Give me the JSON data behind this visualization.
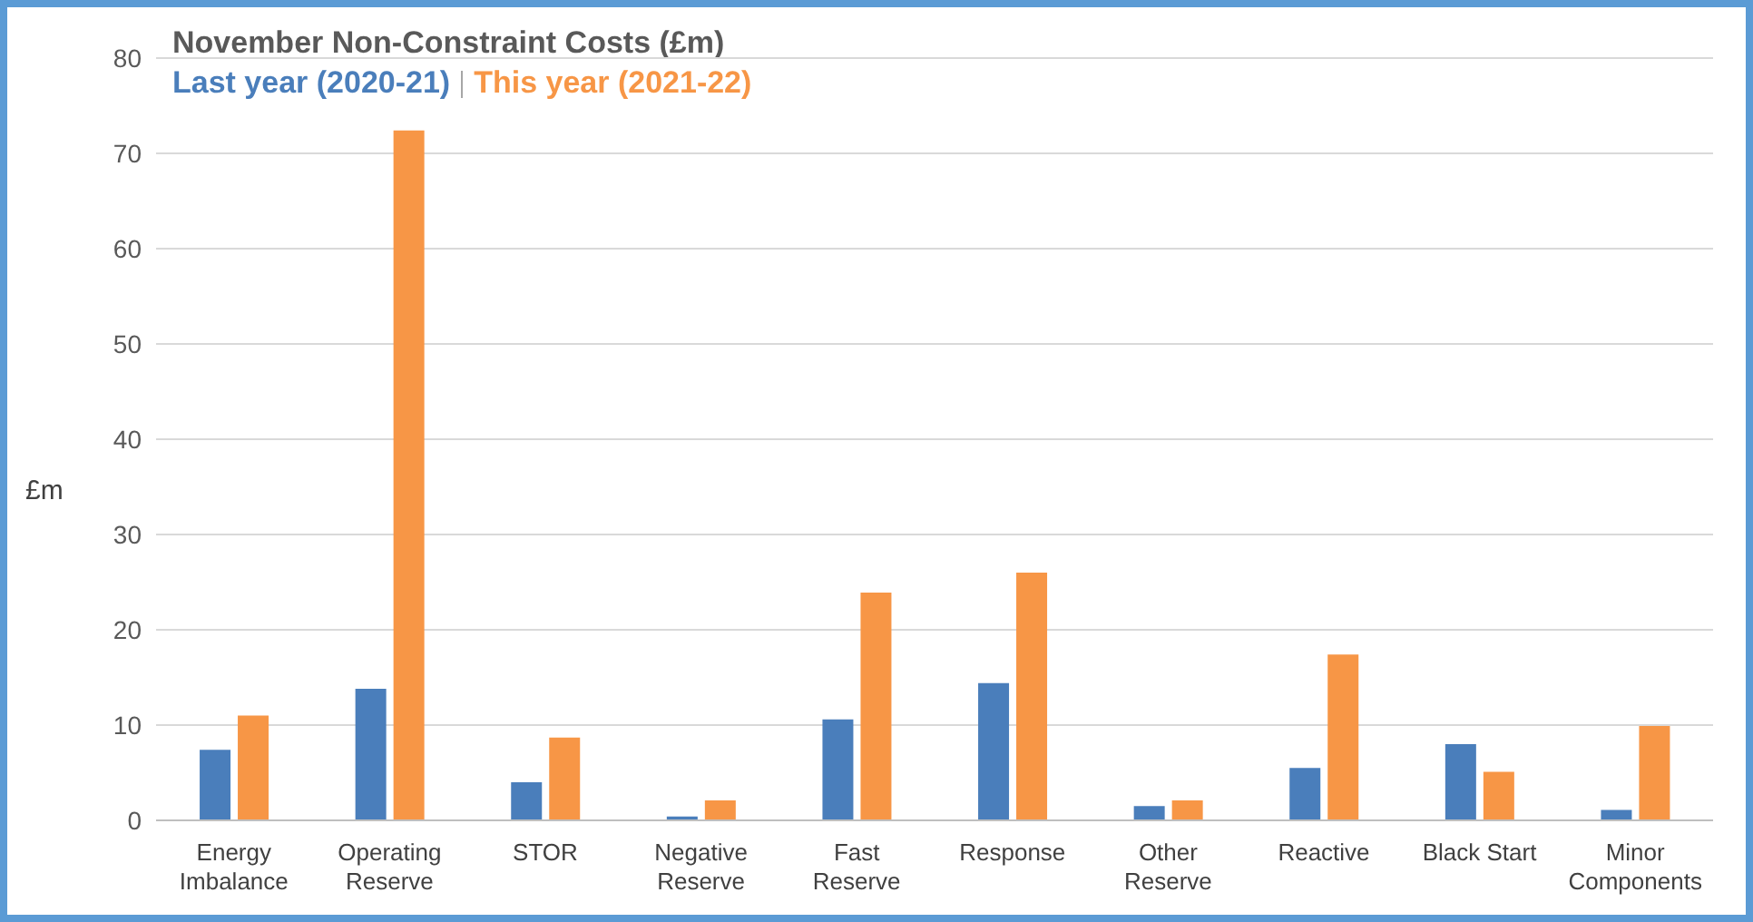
{
  "chart_data": {
    "type": "bar",
    "title": "November Non-Constraint Costs (£m)",
    "ylabel": "£m",
    "categories": [
      "Energy Imbalance",
      "Operating Reserve",
      "STOR",
      "Negative Reserve",
      "Fast Reserve",
      "Response",
      "Other Reserve",
      "Reactive",
      "Black Start",
      "Minor Components"
    ],
    "series": [
      {
        "name": "Last year (2020-21)",
        "color": "#4a7ebb",
        "values": [
          7.4,
          13.8,
          4.0,
          0.4,
          10.6,
          14.4,
          1.5,
          5.5,
          8.0,
          1.1
        ]
      },
      {
        "name": "This year (2021-22)",
        "color": "#f79646",
        "values": [
          11.0,
          72.4,
          8.7,
          2.1,
          23.9,
          26.0,
          2.1,
          17.4,
          5.1,
          9.9
        ]
      }
    ],
    "ylim": [
      0,
      80
    ],
    "yticks": [
      0,
      10,
      20,
      30,
      40,
      50,
      60,
      70,
      80
    ],
    "grid": "y",
    "legend": "top left"
  }
}
